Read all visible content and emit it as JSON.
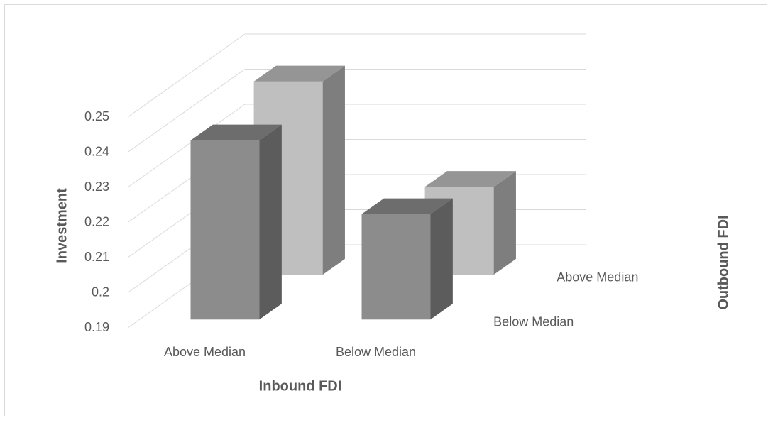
{
  "chart_data": {
    "type": "bar3d",
    "x_label": "Inbound FDI",
    "y_label": "Investment",
    "z_label": "Outbound FDI",
    "categories": [
      "Above Median",
      "Below Median"
    ],
    "series": [
      {
        "name": "Below Median",
        "color": "#8c8c8c",
        "values": [
          0.241,
          0.22
        ]
      },
      {
        "name": "Above Median",
        "color": "#bfbfbf",
        "values": [
          0.245,
          0.215
        ]
      }
    ],
    "ylim": [
      0.19,
      0.25
    ],
    "yticks": [
      0.19,
      0.2,
      0.21,
      0.22,
      0.23,
      0.24,
      0.25
    ],
    "grid": true
  }
}
